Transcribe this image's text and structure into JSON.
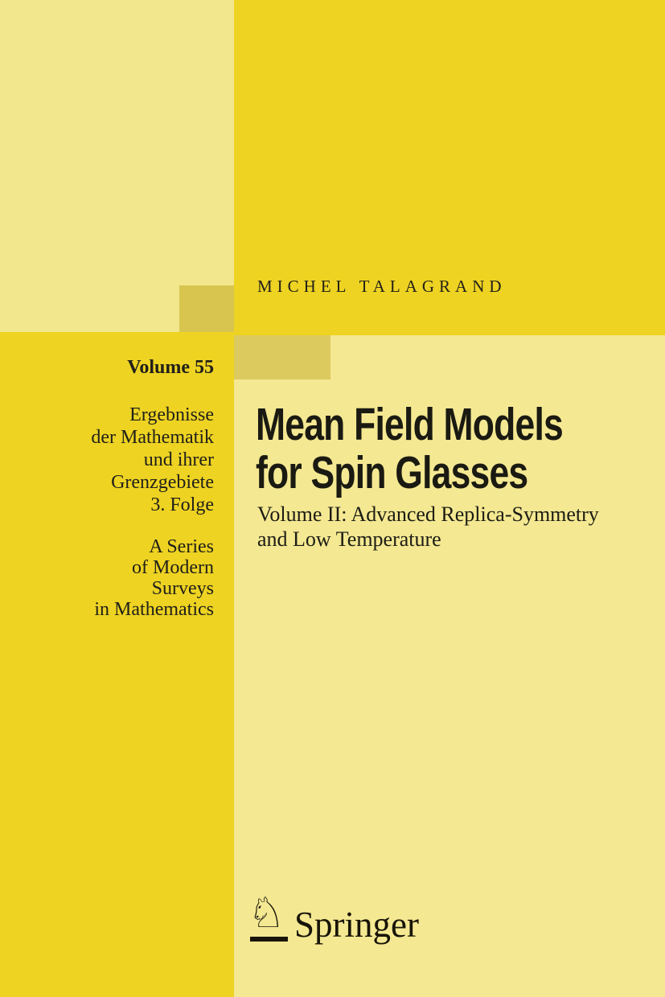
{
  "cover": {
    "author": "MICHEL TALAGRAND",
    "volume_label": "Volume 55",
    "series_name_lines": [
      "Ergebnisse",
      "der Mathematik",
      "und ihrer",
      "Grenzgebiete",
      "3. Folge"
    ],
    "series_sub_lines": [
      "A Series",
      "of Modern",
      "Surveys",
      "in Mathematics"
    ],
    "title_lines": [
      "Mean Field Models",
      "for Spin Glasses"
    ],
    "subtitle_lines": [
      "Volume II: Advanced Replica-Symmetry",
      "and Low Temperature"
    ]
  },
  "publisher": {
    "name": "Springer",
    "logo_icon": "springer-horse-knight-icon",
    "logo_glyph": "♘"
  },
  "colors": {
    "strong_yellow": "#eed322",
    "pale_yellow": "#f4e892",
    "pale_yellow_top_left": "#f2e78d",
    "medium_yellow_left_block": "#d8c54f",
    "medium_yellow_right_block": "#ddca5f",
    "text_dark": "#1c1b13"
  }
}
